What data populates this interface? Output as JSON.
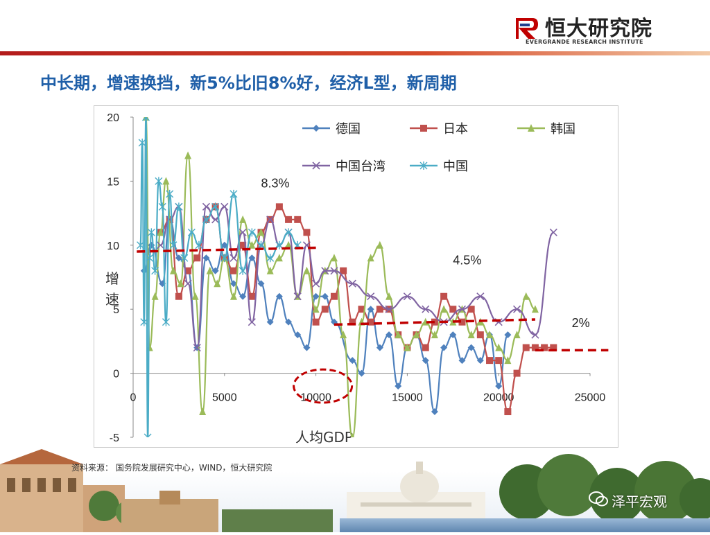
{
  "brand": {
    "name": "恒大研究院",
    "sub": "EVERGRANDE RESEARCH INSTITUTE"
  },
  "slide_title": "中长期，增速换挡，新5%比旧8%好，经济L型，新周期",
  "source": "资料来源：     国务院发展研究中心，WIND，恒大研究院",
  "watermark": "泽平宏观",
  "colors": {
    "title": "#1f5fa8",
    "accent": "#c00000",
    "germany": "#4f81bd",
    "japan": "#c0504d",
    "korea": "#9bbb59",
    "taiwan": "#8064a2",
    "china": "#4bacc6"
  },
  "chart_data": {
    "type": "line",
    "xlabel": "人均GDP",
    "ylabel": "增速",
    "xlim": [
      0,
      25000
    ],
    "ylim": [
      -5,
      20
    ],
    "x_ticks": [
      "0",
      "5000",
      "10000",
      "15000",
      "20000",
      "25000"
    ],
    "y_ticks": [
      "-5",
      "0",
      "5",
      "10",
      "15",
      "20"
    ],
    "legend": [
      "德国",
      "日本",
      "韩国",
      "中国台湾",
      "中国"
    ],
    "annotations": [
      {
        "text": "8.3%",
        "x": 7000,
        "y": 14.5
      },
      {
        "text": "4.5%",
        "x": 17500,
        "y": 8.5
      },
      {
        "text": "2%",
        "x": 24000,
        "y": 3.6
      }
    ],
    "reference_lines": [
      {
        "label": "8.3%",
        "from": [
          200,
          9.5
        ],
        "to": [
          10000,
          9.8
        ]
      },
      {
        "label": "4.5%",
        "from": [
          11000,
          3.8
        ],
        "to": [
          22000,
          4.2
        ]
      },
      {
        "label": "2%",
        "from": [
          22000,
          1.8
        ],
        "to": [
          26000,
          1.8
        ]
      }
    ],
    "series": [
      {
        "name": "德国",
        "x": [
          600,
          1000,
          1600,
          2000,
          2500,
          3000,
          3500,
          4000,
          4500,
          5000,
          5500,
          6000,
          6500,
          7000,
          7500,
          8000,
          8500,
          9000,
          9500,
          10000,
          10500,
          11000,
          12000,
          12500,
          13000,
          13500,
          14000,
          14500,
          15000,
          15500,
          16000,
          16500,
          17000,
          17500,
          18000,
          18500,
          19000,
          19500,
          20000,
          20500
        ],
        "y": [
          8,
          10,
          7,
          12,
          9,
          8,
          2,
          9,
          8,
          10,
          7,
          6,
          9,
          7,
          4,
          6,
          4,
          3,
          2,
          6,
          6,
          4,
          1,
          0,
          5,
          2,
          3,
          -1,
          2,
          3,
          1,
          -3,
          2,
          3,
          1,
          2,
          1,
          3,
          -1,
          3
        ]
      },
      {
        "name": "日本",
        "x": [
          1500,
          2000,
          2500,
          3000,
          3500,
          4000,
          4500,
          5000,
          5500,
          6000,
          6500,
          7000,
          7500,
          8000,
          8500,
          9000,
          9500,
          10000,
          10500,
          11000,
          11500,
          12000,
          12500,
          13000,
          13500,
          14000,
          14500,
          15000,
          15500,
          16000,
          16500,
          17000,
          17500,
          18000,
          18500,
          19000,
          19500,
          20000,
          20500,
          21000,
          21500,
          22000,
          22500,
          23000
        ],
        "y": [
          11,
          12,
          6,
          8,
          9,
          12,
          13,
          9,
          8,
          10,
          6,
          11,
          12,
          13,
          12,
          12,
          11,
          4,
          5,
          6,
          8,
          4,
          5,
          4,
          5,
          5,
          3,
          2,
          3,
          2,
          4,
          6,
          5,
          4,
          5,
          3,
          1,
          1,
          -3,
          0,
          2,
          2,
          2,
          2
        ]
      },
      {
        "name": "韩国",
        "x": [
          700,
          900,
          1200,
          1500,
          1800,
          2200,
          2600,
          3000,
          3400,
          3800,
          4200,
          4600,
          5000,
          5500,
          6000,
          6500,
          7000,
          7500,
          8000,
          8500,
          9000,
          9500,
          10000,
          10500,
          11000,
          11500,
          12000,
          12500,
          13000,
          13500,
          14000,
          14500,
          15000,
          15500,
          16000,
          16500,
          17000,
          17500,
          18000,
          18500,
          19000,
          19500,
          20000,
          20500,
          21000,
          21500,
          22000
        ],
        "y": [
          20,
          2,
          6,
          11,
          15,
          8,
          7,
          17,
          6,
          -3,
          8,
          7,
          9,
          6,
          12,
          10,
          11,
          8,
          9,
          10,
          6,
          8,
          5,
          8,
          9,
          3,
          -5,
          4,
          9,
          10,
          6,
          3,
          2,
          3,
          4,
          3,
          5,
          4,
          5,
          3,
          4,
          3,
          2,
          1,
          3,
          6,
          5
        ]
      },
      {
        "name": "中国台湾",
        "x": [
          1500,
          2000,
          2500,
          3000,
          3500,
          4000,
          4500,
          5000,
          5500,
          6000,
          6500,
          7000,
          7500,
          8000,
          8500,
          9000,
          9500,
          10000,
          10500,
          11000,
          12000,
          13000,
          14000,
          15000,
          16000,
          17000,
          18000,
          19000,
          20000,
          21000,
          22000,
          23000
        ],
        "y": [
          10,
          12,
          13,
          7,
          2,
          13,
          12,
          13,
          9,
          11,
          4,
          10,
          12,
          10,
          11,
          6,
          10,
          7,
          8,
          8,
          7,
          6,
          5,
          6,
          5,
          4,
          5,
          6,
          4,
          5,
          3,
          11
        ]
      },
      {
        "name": "中国",
        "x": [
          400,
          500,
          600,
          700,
          800,
          900,
          1000,
          1200,
          1400,
          1600,
          1800,
          2000,
          2200,
          2500,
          2800,
          3200,
          3600,
          4000,
          4500,
          5000,
          5500,
          6000,
          6500,
          7000,
          7500,
          8000,
          8500,
          9000
        ],
        "y": [
          10,
          18,
          4,
          20,
          -5,
          9,
          11,
          8,
          15,
          13,
          4,
          14,
          10,
          13,
          9,
          11,
          10,
          12,
          13,
          9,
          14,
          8,
          11,
          10,
          9,
          10,
          11,
          10
        ]
      }
    ]
  }
}
